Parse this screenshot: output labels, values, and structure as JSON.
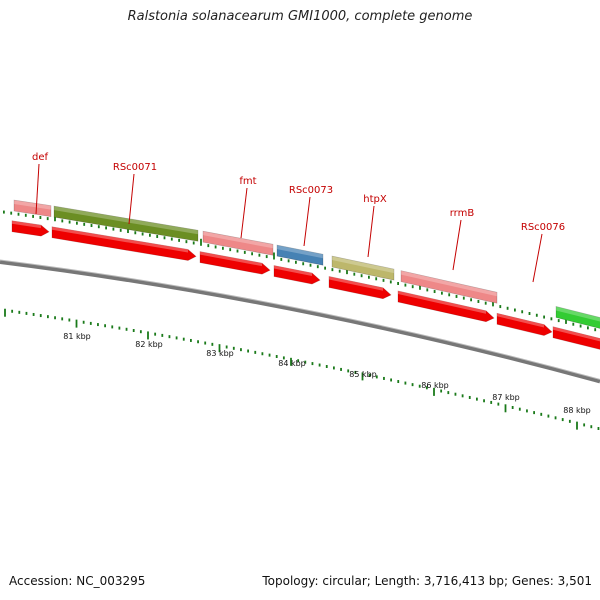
{
  "title": "Ralstonia solanacearum GMI1000, complete genome",
  "footer": {
    "accession": "Accession: NC_003295",
    "summary": "Topology: circular; Length: 3,716,413 bp; Genes: 3,501"
  },
  "colors": {
    "arrow_red": "#ee0000",
    "salmon": "#ee8888",
    "olive": "#6b8e23",
    "steel": "#4682b4",
    "khaki": "#bdb76b",
    "green": "#33cc33",
    "tick_green": "#1a7a1a",
    "backbone": "#777777",
    "label_red": "#c40000"
  },
  "genes": [
    {
      "label": "def",
      "feature": "salmon"
    },
    {
      "label": "RSc0071",
      "feature": "olive"
    },
    {
      "label": "fmt",
      "feature": "salmon"
    },
    {
      "label": "RSc0073",
      "feature": "steel"
    },
    {
      "label": "htpX",
      "feature": "khaki"
    },
    {
      "label": "rrmB",
      "feature": "salmon"
    },
    {
      "label": "RSc0076",
      "feature": "green"
    }
  ],
  "kbp_labels": [
    "81 kbp",
    "82 kbp",
    "83 kbp",
    "84 kbp",
    "85 kbp",
    "86 kbp",
    "87 kbp",
    "88 kbp"
  ]
}
